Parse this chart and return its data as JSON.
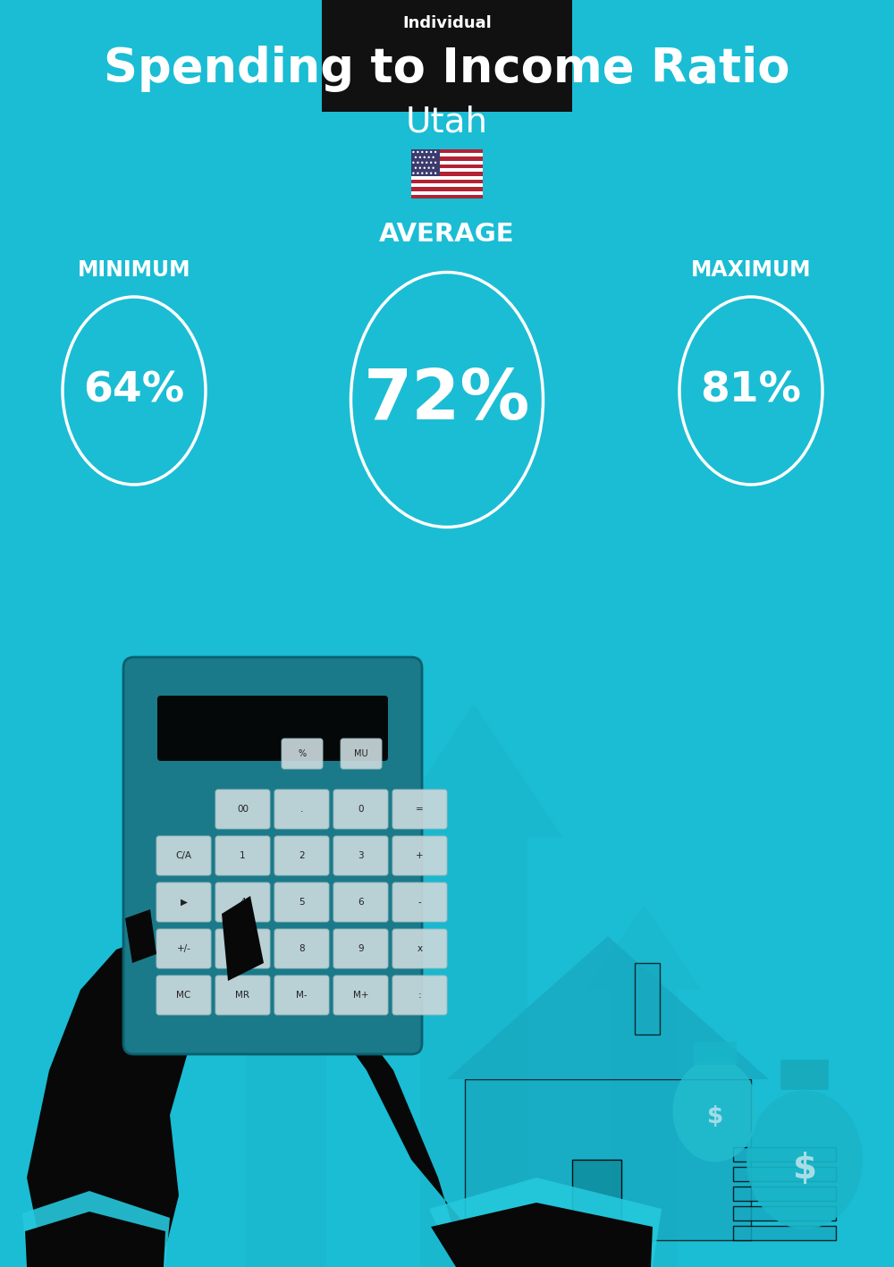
{
  "bg_color": "#1ABDD4",
  "title": "Spending to Income Ratio",
  "subtitle": "Utah",
  "tag_text": "Individual",
  "tag_bg": "#111111",
  "tag_text_color": "#ffffff",
  "title_color": "#ffffff",
  "subtitle_color": "#ffffff",
  "average_label": "AVERAGE",
  "minimum_label": "MINIMUM",
  "maximum_label": "MAXIMUM",
  "label_color": "#ffffff",
  "average_value": "72%",
  "minimum_value": "64%",
  "maximum_value": "81%",
  "value_color": "#ffffff",
  "circle_color": "#ffffff",
  "flag_text": "🇺🇸",
  "title_fontsize": 38,
  "subtitle_fontsize": 28,
  "label_fontsize": 17,
  "avg_value_fontsize": 56,
  "min_max_value_fontsize": 34,
  "arrow_color": "#18B0C8",
  "calc_body_color": "#1A7A8A",
  "calc_display_color": "#050808",
  "btn_color": "#C8D8DC",
  "hand_color": "#080808",
  "cuff_color": "#25C8DC",
  "house_color": "#18A8C0",
  "money_bag_color": "#1AAFC5"
}
